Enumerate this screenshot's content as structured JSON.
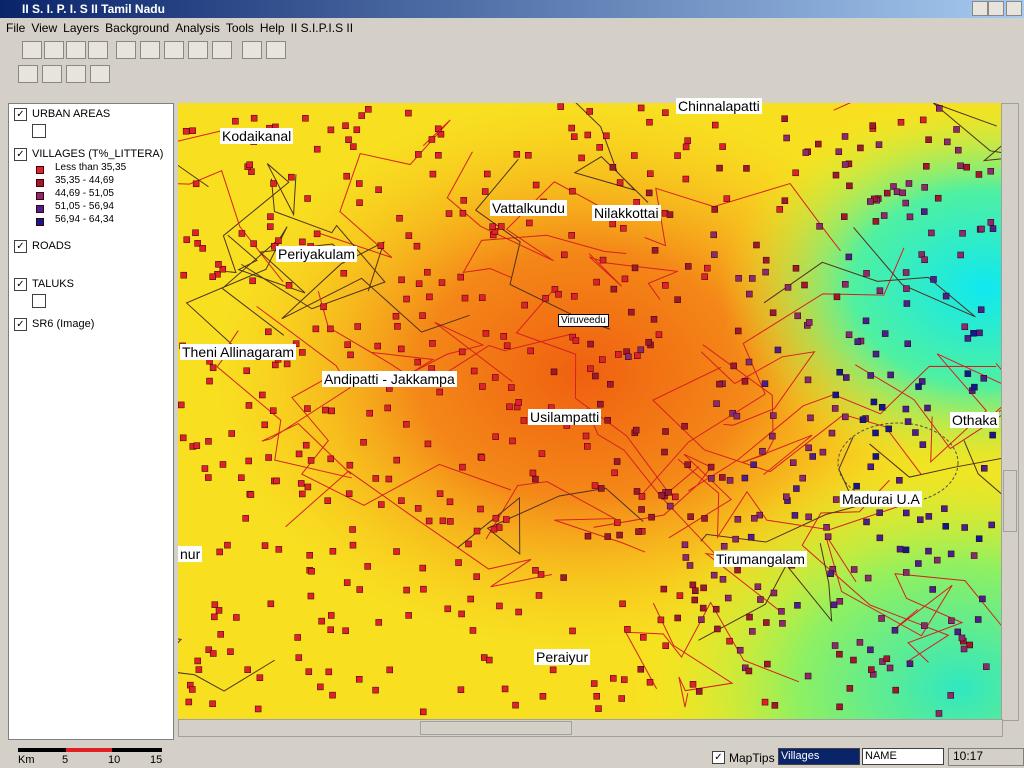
{
  "window": {
    "title": "II S. I. P. I. S II Tamil Nadu"
  },
  "menu": [
    "File",
    "View",
    "Layers",
    "Background",
    "Analysis",
    "Tools",
    "Help",
    "II S.I.P.I.S II"
  ],
  "legend": {
    "layers": [
      {
        "name": "URBAN AREAS"
      },
      {
        "name": "VILLAGES (T%_LITTERA)",
        "classes": [
          {
            "label": "Less than 35,35",
            "color": "#e0202a"
          },
          {
            "label": "35,35 - 44,69",
            "color": "#a01830"
          },
          {
            "label": "44,69 - 51,05",
            "color": "#8a2a70"
          },
          {
            "label": "51,05 - 56,94",
            "color": "#4a2090"
          },
          {
            "label": "56,94 - 64,34",
            "color": "#101a90"
          }
        ]
      },
      {
        "name": "ROADS"
      },
      {
        "name": "TALUKS"
      },
      {
        "name": "SR6 (Image)"
      }
    ]
  },
  "map_labels": [
    "Chinnalapatti",
    "Kodaikanal",
    "Vattalkundu",
    "Nilakkottai",
    "Periyakulam",
    "Viruveedu",
    "Theni Allinagaram",
    "Andipatti - Jakkampa",
    "Usilampatti",
    "Othaka",
    "Madurai U.A",
    "nur",
    "Tirumangalam",
    "Peraiyur"
  ],
  "scale_bar": {
    "unit": "Km",
    "ticks": [
      5,
      10,
      15
    ]
  },
  "status": {
    "maptips": "MapTips",
    "layer": "Villages",
    "field": "NAME",
    "time": "10:17"
  }
}
